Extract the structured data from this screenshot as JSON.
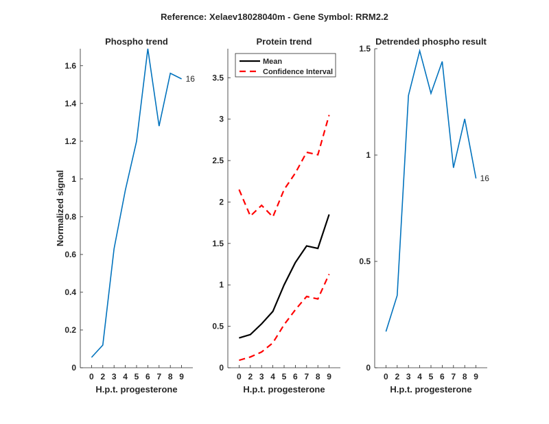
{
  "figure_title": "Reference:  Xelaev18028040m - Gene Symbol:  RRM2.2",
  "chart_data": [
    {
      "type": "line",
      "title": "Phospho trend",
      "xlabel": "H.p.t. progesterone",
      "ylabel": "Normalized signal",
      "categories": [
        "0",
        "2",
        "3",
        "4",
        "5",
        "6",
        "7",
        "8",
        "9"
      ],
      "ylim": [
        0,
        1.69
      ],
      "yticks": [
        0,
        0.2,
        0.4,
        0.6,
        0.8,
        1,
        1.2,
        1.4,
        1.6
      ],
      "ytick_labels": [
        "0",
        "0.2",
        "0.4",
        "0.6",
        "0.8",
        "1",
        "1.2",
        "1.4",
        "1.6"
      ],
      "series": [
        {
          "name": "phospho",
          "color": "#0072BD",
          "style": "solid",
          "values": [
            0.055,
            0.12,
            0.63,
            0.94,
            1.2,
            1.69,
            1.28,
            1.56,
            1.53
          ]
        }
      ],
      "end_label": "16"
    },
    {
      "type": "line",
      "title": "Protein trend",
      "xlabel": "H.p.t. progesterone",
      "ylabel": "",
      "categories": [
        "0",
        "2",
        "3",
        "4",
        "5",
        "6",
        "7",
        "8",
        "9"
      ],
      "ylim": [
        0,
        3.85
      ],
      "yticks": [
        0,
        0.5,
        1,
        1.5,
        2,
        2.5,
        3,
        3.5
      ],
      "ytick_labels": [
        "0",
        "0.5",
        "1",
        "1.5",
        "2",
        "2.5",
        "3",
        "3.5"
      ],
      "legend": {
        "placement": "top-left",
        "entries": [
          "Mean",
          "Confidence Interval"
        ]
      },
      "series": [
        {
          "name": "Mean",
          "color": "#000000",
          "style": "solid",
          "values": [
            0.36,
            0.4,
            0.53,
            0.68,
            1.0,
            1.27,
            1.47,
            1.44,
            1.85
          ]
        },
        {
          "name": "Confidence Interval upper",
          "color": "#FF0000",
          "style": "dashed",
          "values": [
            2.15,
            1.83,
            1.96,
            1.82,
            2.15,
            2.35,
            2.6,
            2.57,
            3.05
          ]
        },
        {
          "name": "Confidence Interval lower",
          "color": "#FF0000",
          "style": "dashed",
          "values": [
            0.09,
            0.13,
            0.19,
            0.3,
            0.52,
            0.7,
            0.86,
            0.83,
            1.13
          ]
        }
      ]
    },
    {
      "type": "line",
      "title": "Detrended phospho result",
      "xlabel": "H.p.t. progesterone",
      "ylabel": "",
      "categories": [
        "0",
        "2",
        "3",
        "4",
        "5",
        "6",
        "7",
        "8",
        "9"
      ],
      "ylim": [
        0,
        1.5
      ],
      "yticks": [
        0,
        0.5,
        1,
        1.5
      ],
      "ytick_labels": [
        "0",
        "0.5",
        "1",
        "1.5"
      ],
      "series": [
        {
          "name": "detrended",
          "color": "#0072BD",
          "style": "solid",
          "values": [
            0.17,
            0.34,
            1.28,
            1.49,
            1.29,
            1.44,
            0.94,
            1.17,
            0.89
          ]
        }
      ],
      "end_label": "16"
    }
  ]
}
